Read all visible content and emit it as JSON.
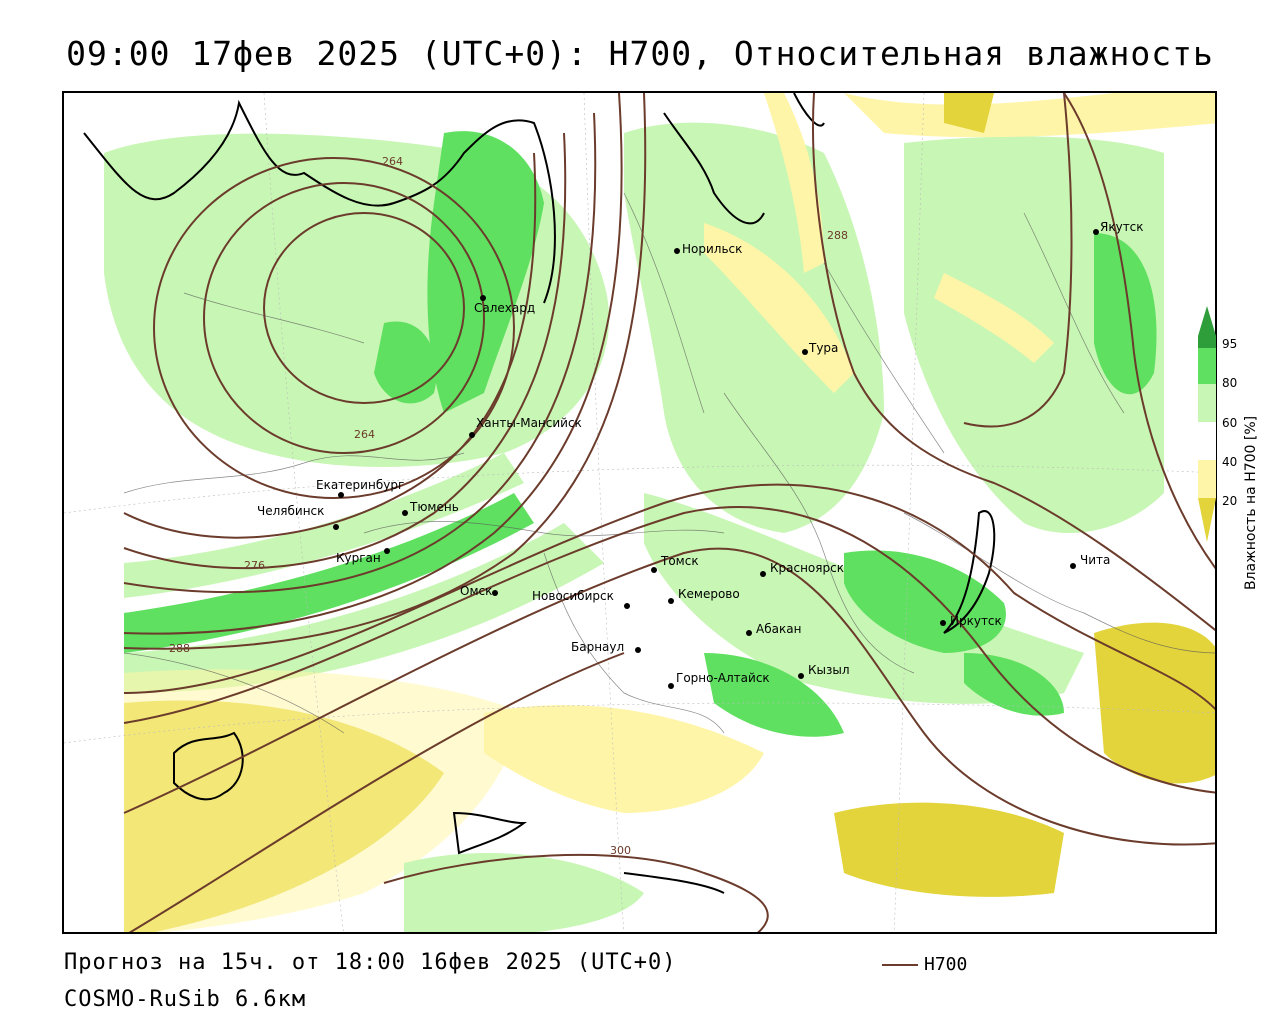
{
  "title": "09:00 17фев 2025 (UTC+0): H700, Относительная влажность",
  "footer": {
    "forecast": "Прогноз на 15ч. от 18:00 16фев 2025 (UTC+0)",
    "model": "COSMO-RuSib 6.6км"
  },
  "legend": {
    "line_label": "H700",
    "line_color": "#6b3b2b"
  },
  "colorbar": {
    "title": "Влажность на H700 [%]",
    "ticks": [
      "95",
      "80",
      "60",
      "40",
      "20"
    ],
    "colors": {
      "very_dry": "#e3d43c",
      "dry": "#fff5a8",
      "neutral": "#ffffff",
      "moist": "#c8f6b4",
      "wet": "#5fe060",
      "saturated": "#2e9e3a"
    }
  },
  "isohypse_labels": [
    "264",
    "264",
    "276",
    "288",
    "288",
    "300"
  ],
  "cities": [
    {
      "name": "Салехард"
    },
    {
      "name": "Норильск"
    },
    {
      "name": "Якутск"
    },
    {
      "name": "Тура"
    },
    {
      "name": "Ханты-Мансийск"
    },
    {
      "name": "Екатеринбург"
    },
    {
      "name": "Тюмень"
    },
    {
      "name": "Челябинск"
    },
    {
      "name": "Курган"
    },
    {
      "name": "Омск"
    },
    {
      "name": "Новосибирск"
    },
    {
      "name": "Томск"
    },
    {
      "name": "Кемерово"
    },
    {
      "name": "Красноярск"
    },
    {
      "name": "Барнаул"
    },
    {
      "name": "Абакан"
    },
    {
      "name": "Горно-Алтайск"
    },
    {
      "name": "Кызыл"
    },
    {
      "name": "Иркутск"
    },
    {
      "name": "Чита"
    }
  ]
}
